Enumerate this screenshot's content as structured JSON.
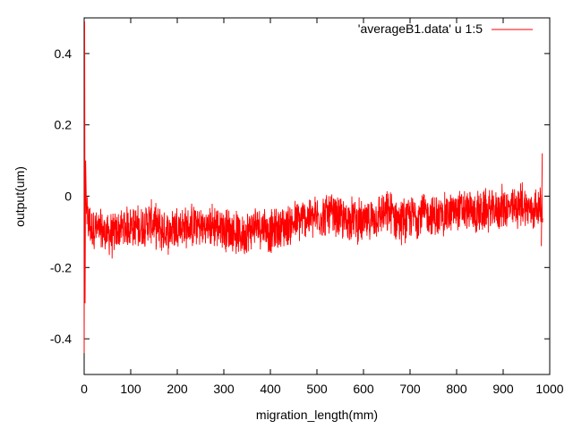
{
  "chart_data": {
    "type": "line",
    "xlabel": "migration_length(mm)",
    "ylabel": "output(um)",
    "xlim": [
      0,
      1000
    ],
    "ylim": [
      -0.5,
      0.5
    ],
    "x_ticks": [
      0,
      100,
      200,
      300,
      400,
      500,
      600,
      700,
      800,
      900,
      1000
    ],
    "y_ticks": [
      -0.4,
      -0.2,
      0,
      0.2,
      0.4
    ],
    "x_tick_labels": [
      "0",
      "100",
      "200",
      "300",
      "400",
      "500",
      "600",
      "700",
      "800",
      "900",
      "1000"
    ],
    "y_tick_labels": [
      "-0.4",
      "-0.2",
      "0",
      "0.2",
      "0.4"
    ],
    "grid": false,
    "legend_position": "top-right",
    "series": [
      {
        "name": "'averageB1.data' u 1:5",
        "color": "#ff0000",
        "x": [
          0,
          1,
          2,
          3,
          5,
          10,
          20,
          40,
          60,
          80,
          100,
          120,
          140,
          160,
          180,
          200,
          220,
          240,
          260,
          280,
          300,
          320,
          340,
          360,
          380,
          400,
          420,
          440,
          460,
          480,
          500,
          520,
          540,
          560,
          580,
          600,
          620,
          640,
          660,
          680,
          700,
          720,
          740,
          760,
          780,
          800,
          820,
          840,
          860,
          880,
          900,
          920,
          940,
          960,
          980,
          985
        ],
        "y": [
          -0.44,
          0.49,
          -0.3,
          0.1,
          -0.05,
          -0.08,
          -0.09,
          -0.1,
          -0.11,
          -0.09,
          -0.08,
          -0.09,
          -0.07,
          -0.09,
          -0.1,
          -0.08,
          -0.09,
          -0.08,
          -0.09,
          -0.08,
          -0.09,
          -0.1,
          -0.11,
          -0.09,
          -0.08,
          -0.1,
          -0.09,
          -0.08,
          -0.07,
          -0.06,
          -0.06,
          -0.05,
          -0.06,
          -0.07,
          -0.06,
          -0.08,
          -0.06,
          -0.05,
          -0.05,
          -0.07,
          -0.06,
          -0.05,
          -0.05,
          -0.06,
          -0.05,
          -0.04,
          -0.04,
          -0.05,
          -0.04,
          -0.04,
          -0.03,
          -0.04,
          -0.02,
          -0.04,
          -0.03,
          -0.03
        ]
      }
    ]
  }
}
